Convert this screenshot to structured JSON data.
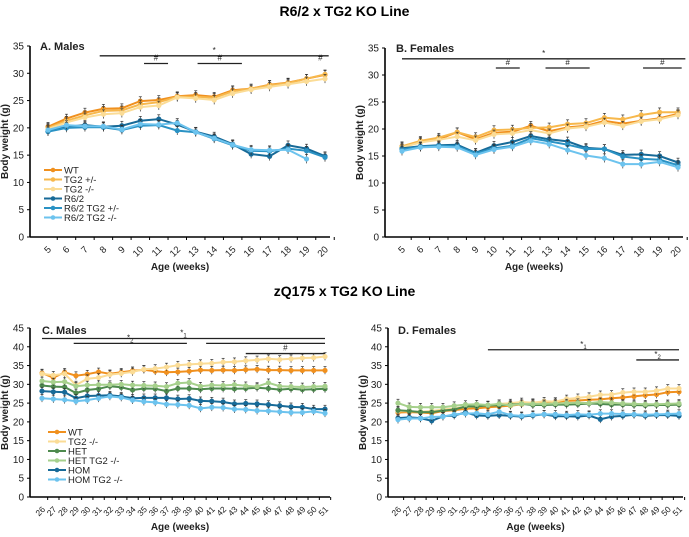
{
  "titles": {
    "top": "R6/2 x TG2 KO Line",
    "bottom": "zQ175 x TG2 KO Line"
  },
  "chart_data": [
    {
      "type": "line",
      "panel": "A",
      "title": "A. Males",
      "xlabel": "Age (weeks)",
      "ylabel": "Body weight (g)",
      "ylim": [
        0,
        35
      ],
      "yticks": [
        0,
        5,
        10,
        15,
        20,
        25,
        30,
        35
      ],
      "x": [
        5,
        6,
        7,
        8,
        9,
        10,
        11,
        12,
        13,
        14,
        15,
        16,
        17,
        18,
        19,
        20
      ],
      "legend_position": "left-middle",
      "series": [
        {
          "name": "WT",
          "color": "#F0901E",
          "values": [
            20.2,
            21.7,
            22.8,
            23.5,
            23.6,
            24.9,
            25.1,
            25.8,
            26.0,
            25.7,
            26.9,
            27.2,
            27.9,
            28.3,
            29.0,
            29.7
          ]
        },
        {
          "name": "TG2 +/-",
          "color": "#F7B84C",
          "values": [
            20.0,
            21.3,
            22.3,
            23.1,
            23.2,
            24.3,
            24.7,
            25.7,
            25.7,
            25.5,
            26.7,
            27.2,
            27.8,
            28.2,
            29.0,
            29.8
          ]
        },
        {
          "name": "TG2 -/-",
          "color": "#FBDC96",
          "values": [
            19.8,
            21.0,
            21.9,
            22.5,
            22.7,
            23.8,
            24.1,
            25.6,
            25.4,
            25.1,
            26.3,
            27.0,
            27.5,
            28.0,
            28.5,
            29.0
          ]
        },
        {
          "name": "R6/2",
          "color": "#176A98",
          "values": [
            19.4,
            20.2,
            20.5,
            20.2,
            20.4,
            21.3,
            21.6,
            20.6,
            19.3,
            18.4,
            17.0,
            15.2,
            14.8,
            16.8,
            16.2,
            14.8
          ]
        },
        {
          "name": "R6/2 TG2 +/-",
          "color": "#2A92C4",
          "values": [
            19.3,
            20.0,
            20.1,
            20.1,
            19.6,
            20.4,
            20.5,
            19.5,
            19.2,
            18.0,
            16.8,
            15.8,
            15.7,
            16.2,
            15.8,
            14.6
          ]
        },
        {
          "name": "R6/2 TG2 -/-",
          "color": "#6CC3EE",
          "values": [
            19.6,
            20.5,
            20.3,
            20.3,
            19.7,
            20.7,
            20.6,
            20.9,
            19.2,
            18.1,
            16.9,
            16.0,
            15.9,
            16.0,
            14.3,
            null
          ]
        }
      ],
      "annotations": [
        {
          "label": "*",
          "from": 7.8,
          "to": 20.2,
          "y": 33.2
        },
        {
          "label": "#",
          "from": 10.2,
          "to": 11.5,
          "y": 31.8
        },
        {
          "label": "#",
          "from": 13.1,
          "to": 15.5,
          "y": 31.8
        },
        {
          "label": "#",
          "from": 19.5,
          "to": 20.0,
          "y": 31.8,
          "no_line": true
        }
      ]
    },
    {
      "type": "line",
      "panel": "B",
      "title": "B. Females",
      "xlabel": "Age (weeks)",
      "ylabel": "Body weight (g)",
      "ylim": [
        0,
        35
      ],
      "yticks": [
        0,
        5,
        10,
        15,
        20,
        25,
        30,
        35
      ],
      "x": [
        5,
        6,
        7,
        8,
        9,
        10,
        11,
        12,
        13,
        14,
        15,
        16,
        17,
        18,
        19,
        20
      ],
      "series": [
        {
          "name": "WT",
          "color": "#F0901E",
          "values": [
            16.8,
            17.6,
            18.1,
            19.4,
            18.1,
            19.3,
            19.5,
            20.6,
            19.6,
            20.3,
            20.6,
            21.5,
            21.0,
            21.5,
            22.0,
            22.8
          ]
        },
        {
          "name": "TG2 +/-",
          "color": "#F7B84C",
          "values": [
            16.8,
            17.8,
            18.4,
            19.4,
            18.5,
            19.8,
            19.9,
            20.2,
            20.3,
            20.9,
            21.1,
            22.1,
            21.8,
            22.6,
            23.1,
            23.1
          ]
        },
        {
          "name": "TG2 -/-",
          "color": "#FBDC96",
          "values": [
            16.6,
            17.5,
            18.0,
            18.6,
            17.9,
            19.0,
            19.2,
            19.8,
            19.2,
            20.1,
            20.4,
            21.2,
            20.6,
            21.4,
            21.8,
            22.6
          ]
        },
        {
          "name": "R6/2",
          "color": "#176A98",
          "values": [
            16.4,
            16.8,
            17.0,
            17.1,
            15.6,
            16.9,
            17.6,
            18.7,
            18.1,
            17.7,
            16.5,
            16.3,
            15.2,
            15.3,
            15.0,
            13.8
          ]
        },
        {
          "name": "R6/2 TG2 +/-",
          "color": "#2A92C4",
          "values": [
            16.2,
            16.7,
            16.9,
            16.8,
            15.5,
            16.4,
            16.9,
            18.3,
            17.7,
            17.1,
            16.3,
            16.3,
            14.9,
            14.5,
            14.3,
            13.3
          ]
        },
        {
          "name": "R6/2 TG2 -/-",
          "color": "#6CC3EE",
          "values": [
            15.9,
            16.6,
            16.7,
            16.6,
            15.2,
            16.2,
            16.7,
            17.8,
            17.2,
            16.1,
            15.1,
            14.6,
            13.5,
            13.5,
            13.9,
            12.9
          ]
        }
      ],
      "annotations": [
        {
          "label": "*",
          "from": 5.0,
          "to": 20.4,
          "y": 33.0
        },
        {
          "label": "#",
          "from": 10.1,
          "to": 11.4,
          "y": 31.3
        },
        {
          "label": "#",
          "from": 12.8,
          "to": 15.2,
          "y": 31.3
        },
        {
          "label": "#",
          "from": 18.1,
          "to": 20.2,
          "y": 31.3
        }
      ]
    },
    {
      "type": "line",
      "panel": "C",
      "title": "C. Males",
      "xlabel": "Age (weeks)",
      "ylabel": "Body weight (g)",
      "ylim": [
        0,
        45
      ],
      "yticks": [
        0,
        5,
        10,
        15,
        20,
        25,
        30,
        35,
        40,
        45
      ],
      "x": [
        26,
        27,
        28,
        29,
        30,
        31,
        32,
        33,
        34,
        35,
        36,
        37,
        38,
        39,
        40,
        41,
        42,
        43,
        44,
        45,
        46,
        47,
        48,
        49,
        50,
        51
      ],
      "legend_position": "left-middle",
      "series": [
        {
          "name": "WT",
          "color": "#F0901E",
          "values": [
            33.0,
            31.8,
            33.2,
            32.3,
            32.7,
            33.3,
            32.8,
            33.2,
            33.6,
            33.9,
            33.5,
            33.2,
            33.3,
            33.5,
            33.8,
            33.7,
            33.8,
            33.7,
            33.9,
            34.0,
            33.8,
            33.8,
            33.7,
            33.7,
            33.7,
            33.7
          ]
        },
        {
          "name": "TG2 -/-",
          "color": "#FBDC96",
          "values": [
            32.8,
            32.4,
            32.8,
            29.8,
            31.5,
            31.8,
            32.6,
            32.9,
            33.3,
            34.0,
            34.2,
            34.6,
            35.1,
            35.3,
            35.5,
            35.6,
            35.9,
            36.0,
            36.3,
            36.5,
            36.8,
            36.6,
            36.8,
            37.0,
            37.1,
            37.4
          ]
        },
        {
          "name": "HET",
          "color": "#4E8A4E",
          "values": [
            29.7,
            29.4,
            29.3,
            27.7,
            28.5,
            28.8,
            29.5,
            29.2,
            28.5,
            28.9,
            28.8,
            28.2,
            28.9,
            28.9,
            28.7,
            28.9,
            28.9,
            28.8,
            28.9,
            29.1,
            28.9,
            28.6,
            28.8,
            28.6,
            28.7,
            28.8
          ]
        },
        {
          "name": "HET TG2 -/-",
          "color": "#A6D08C",
          "values": [
            30.9,
            30.6,
            30.7,
            29.5,
            29.8,
            29.9,
            29.9,
            30.0,
            29.8,
            29.7,
            29.6,
            29.4,
            30.3,
            30.5,
            29.5,
            29.8,
            29.7,
            29.9,
            29.6,
            29.4,
            30.4,
            29.5,
            29.4,
            29.3,
            29.4,
            29.5
          ]
        },
        {
          "name": "HOM",
          "color": "#176A98",
          "values": [
            28.2,
            28.0,
            27.9,
            26.3,
            26.9,
            27.0,
            27.1,
            26.8,
            26.3,
            26.4,
            26.4,
            26.4,
            26.1,
            26.2,
            25.6,
            25.5,
            25.3,
            24.8,
            24.9,
            24.8,
            24.6,
            24.3,
            24.0,
            23.9,
            23.4,
            23.4
          ]
        },
        {
          "name": "HOM TG2 -/-",
          "color": "#6CC3EE",
          "values": [
            26.3,
            26.1,
            25.9,
            25.5,
            25.8,
            26.3,
            26.8,
            26.5,
            25.8,
            25.4,
            25.2,
            24.7,
            24.6,
            24.4,
            23.6,
            23.9,
            23.8,
            23.4,
            23.3,
            23.0,
            22.9,
            22.7,
            22.5,
            22.5,
            22.8,
            22.3
          ]
        }
      ],
      "annotations": [
        {
          "label": "*1",
          "from": 26.0,
          "to": 51.0,
          "y": 42.2
        },
        {
          "label": "*2",
          "from": 28.8,
          "to": 38.8,
          "y": 40.9
        },
        {
          "label": "",
          "from": 40.5,
          "to": 51.0,
          "y": 40.9
        },
        {
          "label": "#",
          "from": 44.0,
          "to": 51.0,
          "y": 38.2
        }
      ]
    },
    {
      "type": "line",
      "panel": "D",
      "title": "D. Females",
      "xlabel": "Age (weeks)",
      "ylabel": "Body weight (g)",
      "ylim": [
        0,
        45
      ],
      "yticks": [
        0,
        5,
        10,
        15,
        20,
        25,
        30,
        35,
        40,
        45
      ],
      "x": [
        26,
        27,
        28,
        29,
        30,
        31,
        32,
        33,
        34,
        35,
        36,
        37,
        38,
        39,
        40,
        41,
        42,
        43,
        44,
        45,
        46,
        47,
        48,
        49,
        50,
        51
      ],
      "series": [
        {
          "name": "WT",
          "color": "#F0901E",
          "values": [
            22.5,
            22.6,
            22.5,
            22.3,
            22.9,
            23.1,
            23.5,
            23.6,
            23.9,
            24.1,
            24.3,
            24.7,
            24.9,
            25.0,
            25.3,
            25.6,
            25.7,
            25.9,
            26.0,
            26.3,
            26.5,
            26.8,
            27.1,
            27.3,
            27.9,
            28.0
          ]
        },
        {
          "name": "TG2 -/-",
          "color": "#FBDC96",
          "values": [
            22.9,
            22.8,
            22.7,
            22.9,
            23.3,
            23.6,
            24.0,
            24.1,
            24.4,
            24.8,
            25.0,
            25.3,
            25.1,
            25.5,
            25.4,
            26.1,
            26.4,
            26.7,
            27.2,
            27.3,
            27.8,
            28.0,
            28.0,
            28.3,
            28.9,
            28.9
          ]
        },
        {
          "name": "HET",
          "color": "#4E8A4E",
          "values": [
            23.1,
            22.9,
            22.6,
            22.6,
            23.0,
            23.3,
            24.1,
            24.1,
            24.4,
            24.4,
            24.6,
            24.8,
            24.5,
            24.5,
            24.6,
            24.6,
            24.7,
            24.9,
            24.8,
            24.6,
            24.6,
            24.5,
            24.4,
            24.5,
            24.5,
            24.6
          ]
        },
        {
          "name": "HET TG2 -/-",
          "color": "#A6D08C",
          "values": [
            25.0,
            24.0,
            23.9,
            23.9,
            23.9,
            24.3,
            24.6,
            24.7,
            24.5,
            24.8,
            24.4,
            24.8,
            24.8,
            24.8,
            24.9,
            25.0,
            25.1,
            25.0,
            25.3,
            25.1,
            24.9,
            24.8,
            24.7,
            24.7,
            24.8,
            24.9
          ]
        },
        {
          "name": "HOM",
          "color": "#176A98",
          "values": [
            21.0,
            21.2,
            21.0,
            20.3,
            21.5,
            21.7,
            22.5,
            21.7,
            21.6,
            21.8,
            21.6,
            21.4,
            21.7,
            22.0,
            21.5,
            21.5,
            21.4,
            21.7,
            20.7,
            21.4,
            21.6,
            21.9,
            21.6,
            21.8,
            21.8,
            21.6
          ]
        },
        {
          "name": "HOM TG2 -/-",
          "color": "#6CC3EE",
          "values": [
            20.6,
            20.9,
            20.9,
            21.3,
            21.4,
            22.0,
            22.2,
            22.3,
            22.0,
            22.7,
            21.8,
            21.6,
            21.9,
            22.0,
            22.0,
            21.8,
            22.0,
            21.9,
            22.2,
            22.2,
            22.1,
            22.0,
            21.9,
            22.0,
            22.1,
            22.2
          ]
        }
      ],
      "annotations": [
        {
          "label": "*1",
          "from": 34.0,
          "to": 51.0,
          "y": 39.2
        },
        {
          "label": "*2",
          "from": 47.2,
          "to": 51.0,
          "y": 36.5
        }
      ]
    }
  ]
}
